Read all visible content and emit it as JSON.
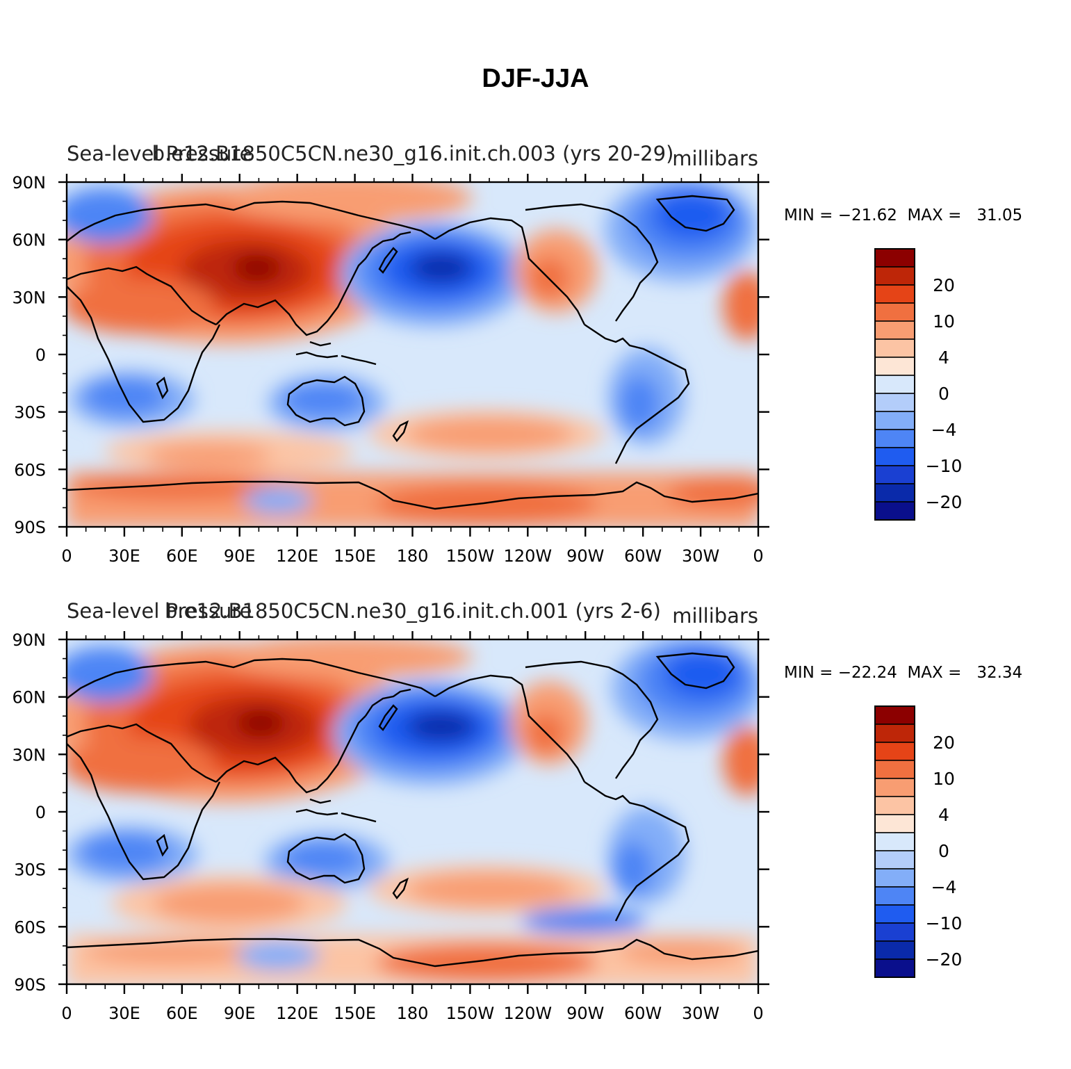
{
  "title": "DJF-JJA",
  "colors": {
    "scale": [
      "#0a0f8c",
      "#0a2aaa",
      "#1a40d2",
      "#1f5cf0",
      "#4e85f5",
      "#83aef8",
      "#b3cdfa",
      "#d8e8fb",
      "#fde6d6",
      "#fcc4a4",
      "#f89d72",
      "#f07040",
      "#e54417",
      "#be2608",
      "#8c0000"
    ]
  },
  "colorbar": {
    "labels": [
      "20",
      "10",
      "4",
      "0",
      "−4",
      "−10",
      "−20"
    ]
  },
  "axes": {
    "y_ticks": [
      "90N",
      "60N",
      "30N",
      "0",
      "30S",
      "60S",
      "90S"
    ],
    "x_ticks": [
      "0",
      "30E",
      "60E",
      "90E",
      "120E",
      "150E",
      "180",
      "150W",
      "120W",
      "90W",
      "60W",
      "30W",
      "0"
    ]
  },
  "panels": [
    {
      "left_title": "Sea-level Pressure",
      "center_title": "b.e12.B1850C5CN.ne30_g16.init.ch.003 (yrs 20-29)",
      "units": "millibars",
      "stats": "MIN = −21.62  MAX =   31.05"
    },
    {
      "left_title": "Sea-level Pressure",
      "center_title": "b.e12.B1850C5CN.ne30_g16.init.ch.001 (yrs 2-6)",
      "units": "millibars",
      "stats": "MIN = −22.24  MAX =   32.34"
    }
  ]
}
